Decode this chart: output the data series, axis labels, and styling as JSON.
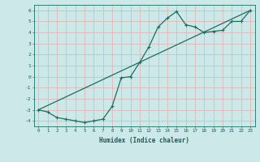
{
  "xlabel": "Humidex (Indice chaleur)",
  "xlim": [
    -0.5,
    23.5
  ],
  "ylim": [
    -4.5,
    6.5
  ],
  "xticks": [
    0,
    1,
    2,
    3,
    4,
    5,
    6,
    7,
    8,
    9,
    10,
    11,
    12,
    13,
    14,
    15,
    16,
    17,
    18,
    19,
    20,
    21,
    22,
    23
  ],
  "yticks": [
    -4,
    -3,
    -2,
    -1,
    0,
    1,
    2,
    3,
    4,
    5,
    6
  ],
  "background_color": "#cde8e8",
  "line_color": "#1a7060",
  "grid_color": "#deb8b8",
  "line1_x": [
    0,
    1,
    2,
    3,
    4,
    5,
    6,
    7,
    8,
    9,
    10,
    11,
    12,
    13,
    14,
    15,
    16,
    17,
    18,
    19,
    20,
    21,
    22,
    23
  ],
  "line1_y": [
    -3.0,
    -3.2,
    -3.7,
    -3.85,
    -4.0,
    -4.15,
    -4.0,
    -3.85,
    -2.7,
    -0.1,
    0.0,
    1.3,
    2.7,
    4.5,
    5.3,
    5.9,
    4.7,
    4.5,
    4.0,
    4.1,
    4.2,
    5.0,
    5.0,
    6.0
  ],
  "line2_x": [
    0,
    23
  ],
  "line2_y": [
    -3.0,
    6.0
  ]
}
